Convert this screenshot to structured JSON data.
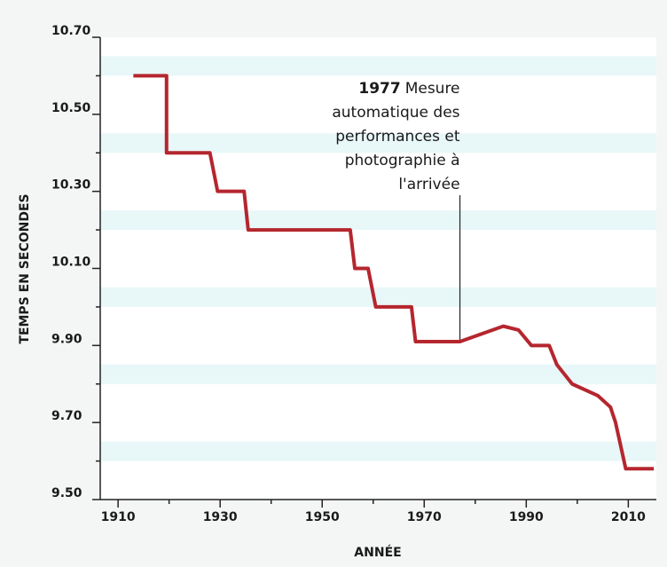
{
  "chart_data": {
    "type": "line",
    "x_label": "ANNÉE",
    "y_label": "TEMPS EN SECONDES",
    "x": [
      1913,
      1919.5,
      1919.5,
      1928,
      1929.5,
      1934.7,
      1935.5,
      1955.5,
      1956.4,
      1959,
      1960.5,
      1967.5,
      1968.3,
      1977,
      1985.5,
      1988.5,
      1991,
      1994.5,
      1996,
      1999,
      2004,
      2006.5,
      2007.5,
      2009.5,
      2015
    ],
    "series": [
      {
        "color": "#b5262e",
        "values": [
          10.6,
          10.6,
          10.4,
          10.4,
          10.3,
          10.3,
          10.2,
          10.2,
          10.1,
          10.1,
          10.0,
          10.0,
          9.91,
          9.91,
          9.95,
          9.94,
          9.9,
          9.9,
          9.85,
          9.8,
          9.77,
          9.74,
          9.7,
          9.58,
          9.58
        ]
      }
    ],
    "xlim": [
      1906.5,
      2015.5
    ],
    "ylim": [
      9.5,
      10.7
    ],
    "xticks": [
      1910,
      1930,
      1950,
      1970,
      1990,
      2010
    ],
    "xticks_minor": [
      1920,
      1940,
      1960,
      1980,
      2000
    ],
    "yticks": [
      {
        "value": 9.5,
        "label": "9.50"
      },
      {
        "value": 9.7,
        "label": "9.70"
      },
      {
        "value": 9.9,
        "label": "9.90"
      },
      {
        "value": 10.1,
        "label": "10.10"
      },
      {
        "value": 10.3,
        "label": "10.30"
      },
      {
        "value": 10.5,
        "label": "10.50"
      },
      {
        "value": 10.7,
        "label": "10.70"
      }
    ],
    "yticks_minor": [
      9.6,
      9.8,
      10.0,
      10.2,
      10.4,
      10.6
    ],
    "annotation": {
      "x": 1977,
      "year": "1977",
      "text": [
        "Mesure",
        "automatique des",
        "performances et",
        "photographie à",
        "l'arrivée"
      ]
    }
  }
}
